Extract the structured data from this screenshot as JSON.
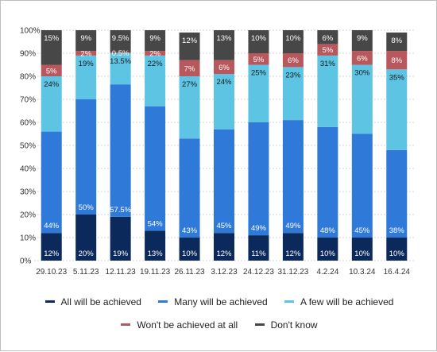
{
  "chart_data": {
    "type": "bar",
    "stacked": true,
    "ylim": [
      0,
      100
    ],
    "yticks": [
      "0%",
      "10%",
      "20%",
      "30%",
      "40%",
      "50%",
      "60%",
      "70%",
      "80%",
      "90%",
      "100%"
    ],
    "grid": "horizontal dashed",
    "legend_placement": "bottom",
    "categories": [
      "29.10.23",
      "5.11.23",
      "12.11.23",
      "19.11.23",
      "26.11.23",
      "3.12.23",
      "24.12.23",
      "31.12.23",
      "4.2.24",
      "10.3.24",
      "16.4.24"
    ],
    "series": [
      {
        "name": "All will be achieved",
        "color": "#0b2a5b",
        "label_color": "#ffffff",
        "values": [
          12,
          20,
          19,
          13,
          10,
          12,
          11,
          12,
          10,
          10,
          10
        ],
        "labels": [
          "12%",
          "20%",
          "19%",
          "13%",
          "10%",
          "12%",
          "11%",
          "12%",
          "10%",
          "10%",
          "10%"
        ]
      },
      {
        "name": "Many will be achieved",
        "color": "#2f7ad9",
        "label_color": "#ffffff",
        "values": [
          44,
          50,
          57.5,
          54,
          43,
          45,
          49,
          49,
          48,
          45,
          38
        ],
        "labels": [
          "44%",
          "50%",
          "57.5%",
          "54%",
          "43%",
          "45%",
          "49%",
          "49%",
          "48%",
          "45%",
          "38%"
        ]
      },
      {
        "name": "A few will be achieved",
        "color": "#5ec4e4",
        "label_color": "#1a1a1a",
        "values": [
          24,
          19,
          13.5,
          22,
          27,
          24,
          25,
          23,
          31,
          30,
          35
        ],
        "labels": [
          "24%",
          "19%",
          "13.5%",
          "22%",
          "27%",
          "24%",
          "25%",
          "23%",
          "31%",
          "30%",
          "35%"
        ]
      },
      {
        "name": "Won't be achieved at all",
        "color": "#b8575c",
        "label_color": "#ffffff",
        "values": [
          5,
          2,
          0.5,
          2,
          7,
          6,
          5,
          6,
          5,
          6,
          8
        ],
        "labels": [
          "5%",
          "2%",
          "0.5%",
          "2%",
          "7%",
          "6%",
          "5%",
          "6%",
          "5%",
          "6%",
          "8%"
        ]
      },
      {
        "name": "Don't know",
        "color": "#474747",
        "label_color": "#ffffff",
        "values": [
          15,
          9,
          9.5,
          9,
          12,
          13,
          10,
          10,
          6,
          9,
          8
        ],
        "labels": [
          "15%",
          "9%",
          "9.5%",
          "9%",
          "12%",
          "13%",
          "10%",
          "10%",
          "6%",
          "9%",
          "8%"
        ]
      }
    ]
  }
}
